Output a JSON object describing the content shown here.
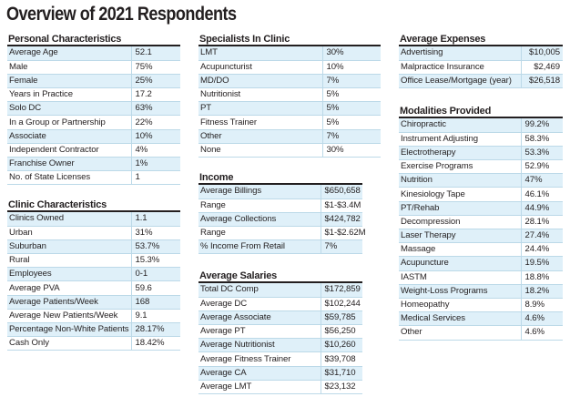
{
  "title": "Overview of 2021 Respondents",
  "personal": {
    "title": "Personal Characteristics",
    "rows": [
      {
        "label": "Average Age",
        "value": "52.1"
      },
      {
        "label": "Male",
        "value": "75%"
      },
      {
        "label": "Female",
        "value": "25%"
      },
      {
        "label": "Years in Practice",
        "value": "17.2"
      },
      {
        "label": "Solo DC",
        "value": "63%"
      },
      {
        "label": "In a Group or Partnership",
        "value": "22%"
      },
      {
        "label": "Associate",
        "value": "10%"
      },
      {
        "label": "Independent Contractor",
        "value": "4%"
      },
      {
        "label": "Franchise Owner",
        "value": "1%"
      },
      {
        "label": "No. of State Licenses",
        "value": "1"
      }
    ]
  },
  "clinic": {
    "title": "Clinic Characteristics",
    "rows": [
      {
        "label": "Clinics Owned",
        "value": "1.1"
      },
      {
        "label": "Urban",
        "value": "31%"
      },
      {
        "label": "Suburban",
        "value": "53.7%"
      },
      {
        "label": "Rural",
        "value": "15.3%"
      },
      {
        "label": "Employees",
        "value": "0-1"
      },
      {
        "label": "Average PVA",
        "value": "59.6"
      },
      {
        "label": "Average Patients/Week",
        "value": "168"
      },
      {
        "label": "Average New Patients/Week",
        "value": "9.1"
      },
      {
        "label": "Percentage Non-White Patients",
        "value": "28.17%"
      },
      {
        "label": "Cash Only",
        "value": "18.42%"
      }
    ]
  },
  "specialists": {
    "title": "Specialists In Clinic",
    "rows": [
      {
        "label": "LMT",
        "value": "30%"
      },
      {
        "label": "Acupuncturist",
        "value": "10%"
      },
      {
        "label": "MD/DO",
        "value": "7%"
      },
      {
        "label": "Nutritionist",
        "value": "5%"
      },
      {
        "label": "PT",
        "value": "5%"
      },
      {
        "label": "Fitness Trainer",
        "value": "5%"
      },
      {
        "label": "Other",
        "value": "7%"
      },
      {
        "label": "None",
        "value": "30%"
      }
    ]
  },
  "income": {
    "title": "Income",
    "rows": [
      {
        "label": "Average Billings",
        "value": "$650,658"
      },
      {
        "label": "Range",
        "value": "$1-$3.4M"
      },
      {
        "label": "Average Collections",
        "value": "$424,782"
      },
      {
        "label": "Range",
        "value": "$1-$2.62M"
      },
      {
        "label": "% Income From Retail",
        "value": "7%"
      }
    ]
  },
  "salaries": {
    "title": "Average Salaries",
    "rows": [
      {
        "label": "Total DC Comp",
        "value": "$172,859"
      },
      {
        "label": "Average DC",
        "value": "$102,244"
      },
      {
        "label": "Average Associate",
        "value": "$59,785"
      },
      {
        "label": "Average PT",
        "value": "$56,250"
      },
      {
        "label": "Average Nutritionist",
        "value": "$10,260"
      },
      {
        "label": "Average Fitness Trainer",
        "value": "$39,708"
      },
      {
        "label": "Average CA",
        "value": "$31,710"
      },
      {
        "label": "Average LMT",
        "value": "$23,132"
      }
    ]
  },
  "expenses": {
    "title": "Average Expenses",
    "rows": [
      {
        "label": "Advertising",
        "value": "$10,005"
      },
      {
        "label": "Malpractice Insurance",
        "value": "$2,469"
      },
      {
        "label": "Office Lease/Mortgage (year)",
        "value": "$26,518"
      }
    ]
  },
  "modalities": {
    "title": "Modalities Provided",
    "rows": [
      {
        "label": "Chiropractic",
        "value": "99.2%"
      },
      {
        "label": "Instrument Adjusting",
        "value": "58.3%"
      },
      {
        "label": "Electrotherapy",
        "value": "53.3%"
      },
      {
        "label": "Exercise Programs",
        "value": "52.9%"
      },
      {
        "label": "Nutrition",
        "value": "47%"
      },
      {
        "label": "Kinesiology Tape",
        "value": "46.1%"
      },
      {
        "label": "PT/Rehab",
        "value": "44.9%"
      },
      {
        "label": "Decompression",
        "value": "28.1%"
      },
      {
        "label": "Laser Therapy",
        "value": "27.4%"
      },
      {
        "label": "Massage",
        "value": "24.4%"
      },
      {
        "label": "Acupuncture",
        "value": "19.5%"
      },
      {
        "label": "IASTM",
        "value": "18.8%"
      },
      {
        "label": "Weight-Loss Programs",
        "value": "18.2%"
      },
      {
        "label": "Homeopathy",
        "value": "8.9%"
      },
      {
        "label": "Medical Services",
        "value": "4.6%"
      },
      {
        "label": "Other",
        "value": "4.6%"
      }
    ]
  }
}
